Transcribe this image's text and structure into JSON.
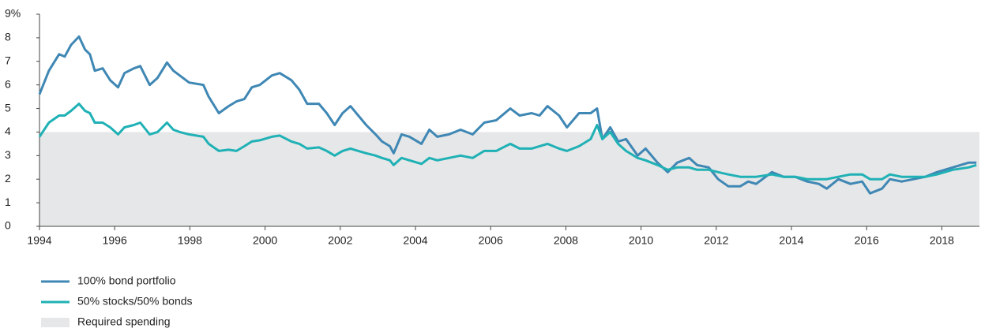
{
  "chart_data": {
    "type": "line",
    "x": [
      1994.0,
      1994.25,
      1994.52,
      1994.67,
      1994.84,
      1995.05,
      1995.21,
      1995.34,
      1995.47,
      1995.68,
      1995.88,
      1996.09,
      1996.26,
      1996.51,
      1996.68,
      1996.93,
      1997.14,
      1997.39,
      1997.56,
      1997.73,
      1997.98,
      1998.36,
      1998.5,
      1998.77,
      1999.03,
      1999.24,
      1999.45,
      1999.65,
      1999.86,
      2000.18,
      2000.39,
      2000.7,
      2000.91,
      2001.12,
      2001.43,
      2001.64,
      2001.85,
      2002.06,
      2002.27,
      2002.48,
      2002.69,
      2002.94,
      2003.11,
      2003.32,
      2003.42,
      2003.63,
      2003.84,
      2004.16,
      2004.37,
      2004.58,
      2004.89,
      2005.2,
      2005.52,
      2005.83,
      2006.15,
      2006.52,
      2006.77,
      2007.09,
      2007.3,
      2007.51,
      2007.82,
      2008.03,
      2008.35,
      2008.66,
      2008.83,
      2008.97,
      2009.18,
      2009.39,
      2009.6,
      2009.91,
      2010.12,
      2010.44,
      2010.71,
      2010.96,
      2011.28,
      2011.49,
      2011.8,
      2012.05,
      2012.32,
      2012.64,
      2012.85,
      2013.06,
      2013.48,
      2013.79,
      2014.1,
      2014.42,
      2014.73,
      2014.94,
      2015.25,
      2015.57,
      2015.88,
      2016.09,
      2016.41,
      2016.62,
      2016.93,
      2017.25,
      2017.56,
      2017.87,
      2018.29,
      2018.71,
      2018.92
    ],
    "series": [
      {
        "name": "100% bond portfolio",
        "color": "#3f87b4",
        "values": [
          5.6,
          6.6,
          7.3,
          7.2,
          7.7,
          8.05,
          7.5,
          7.3,
          6.6,
          6.7,
          6.2,
          5.9,
          6.5,
          6.7,
          6.8,
          6.0,
          6.3,
          6.95,
          6.6,
          6.4,
          6.1,
          6.0,
          5.5,
          4.8,
          5.1,
          5.3,
          5.4,
          5.9,
          6.0,
          6.4,
          6.5,
          6.2,
          5.8,
          5.2,
          5.2,
          4.8,
          4.3,
          4.8,
          5.1,
          4.7,
          4.3,
          3.9,
          3.6,
          3.4,
          3.1,
          3.9,
          3.8,
          3.5,
          4.1,
          3.8,
          3.9,
          4.1,
          3.9,
          4.4,
          4.5,
          5.0,
          4.7,
          4.8,
          4.7,
          5.1,
          4.7,
          4.2,
          4.8,
          4.8,
          5.0,
          3.7,
          4.2,
          3.6,
          3.7,
          3.0,
          3.3,
          2.7,
          2.3,
          2.7,
          2.9,
          2.6,
          2.5,
          2.0,
          1.7,
          1.7,
          1.9,
          1.8,
          2.3,
          2.1,
          2.1,
          1.9,
          1.8,
          1.6,
          2.0,
          1.8,
          1.9,
          1.4,
          1.6,
          2.0,
          1.9,
          2.0,
          2.1,
          2.3,
          2.5,
          2.7,
          2.7
        ]
      },
      {
        "name": "50% stocks/50% bonds",
        "color": "#1fb1b5",
        "values": [
          3.8,
          4.4,
          4.7,
          4.7,
          4.9,
          5.2,
          4.9,
          4.8,
          4.4,
          4.4,
          4.2,
          3.9,
          4.2,
          4.3,
          4.4,
          3.9,
          4.0,
          4.4,
          4.1,
          4.0,
          3.9,
          3.8,
          3.5,
          3.2,
          3.25,
          3.2,
          3.4,
          3.6,
          3.65,
          3.8,
          3.85,
          3.6,
          3.5,
          3.3,
          3.35,
          3.2,
          3.0,
          3.2,
          3.3,
          3.2,
          3.1,
          3.0,
          2.9,
          2.8,
          2.6,
          2.9,
          2.8,
          2.65,
          2.9,
          2.8,
          2.9,
          3.0,
          2.9,
          3.2,
          3.2,
          3.5,
          3.3,
          3.3,
          3.4,
          3.5,
          3.3,
          3.2,
          3.4,
          3.7,
          4.3,
          3.7,
          4.0,
          3.5,
          3.2,
          2.9,
          2.8,
          2.6,
          2.4,
          2.5,
          2.5,
          2.4,
          2.4,
          2.3,
          2.2,
          2.1,
          2.1,
          2.1,
          2.2,
          2.1,
          2.1,
          2.0,
          2.0,
          2.0,
          2.1,
          2.2,
          2.2,
          2.0,
          2.0,
          2.2,
          2.1,
          2.1,
          2.1,
          2.2,
          2.4,
          2.5,
          2.6
        ]
      }
    ],
    "band": {
      "name": "Required spending",
      "value": 4,
      "color": "#e6e7e8"
    },
    "xlim": [
      1994,
      2019
    ],
    "xticks": [
      1994,
      1996,
      1998,
      2000,
      2002,
      2004,
      2006,
      2008,
      2010,
      2012,
      2014,
      2016,
      2018
    ],
    "ylim": [
      0,
      9
    ],
    "yticks": [
      0,
      1,
      2,
      3,
      4,
      5,
      6,
      7,
      8,
      {
        "value": 9,
        "label": "9%"
      }
    ]
  }
}
